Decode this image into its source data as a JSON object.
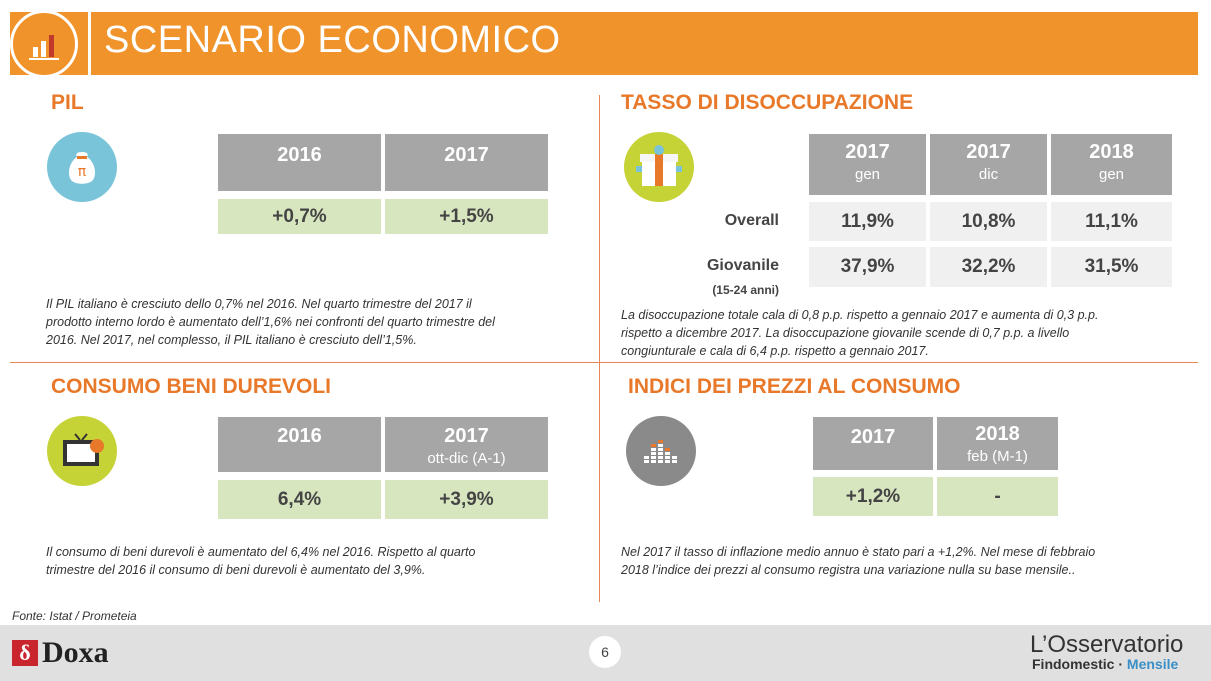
{
  "header": {
    "title": "SCENARIO ECONOMICO",
    "icon": "bar-chart-icon"
  },
  "pil": {
    "title": "PIL",
    "icon": "money-bag-icon",
    "headers": [
      "2016",
      "2017"
    ],
    "values": [
      "+0,7%",
      "+1,5%"
    ],
    "desc": [
      "Il PIL italiano è cresciuto dello 0,7% nel 2016. Nel quarto trimestre del 2017 il",
      "prodotto interno lordo è aumentato dell’1,6% nei confronti del quarto trimestre del",
      "2016. Nel 2017, nel complesso, il PIL italiano è cresciuto dell’1,5%."
    ]
  },
  "disoccupazione": {
    "title": "TASSO DI DISOCCUPAZIONE",
    "icon": "gift-box-icon",
    "headers": [
      {
        "year": "2017",
        "sub": "gen"
      },
      {
        "year": "2017",
        "sub": "dic"
      },
      {
        "year": "2018",
        "sub": "gen"
      }
    ],
    "rows": [
      {
        "label": "Overall",
        "sublabel": "",
        "values": [
          "11,9%",
          "10,8%",
          "11,1%"
        ]
      },
      {
        "label": "Giovanile",
        "sublabel": "(15-24 anni)",
        "values": [
          "37,9%",
          "32,2%",
          "31,5%"
        ]
      }
    ],
    "desc": [
      "La disoccupazione totale cala di 0,8 p.p. rispetto a gennaio 2017 e aumenta di 0,3 p.p.",
      "rispetto a dicembre 2017. La disoccupazione giovanile scende di 0,7 p.p. a livello",
      "congiunturale e cala di 6,4 p.p. rispetto a gennaio 2017."
    ]
  },
  "consumo": {
    "title": "CONSUMO BENI DUREVOLI",
    "icon": "television-icon",
    "headers": [
      {
        "year": "2016",
        "sub": ""
      },
      {
        "year": "2017",
        "sub": "ott-dic (A-1)"
      }
    ],
    "values": [
      "6,4%",
      "+3,9%"
    ],
    "desc": [
      "Il consumo di beni durevoli è aumentato del 6,4% nel 2016. Rispetto al quarto",
      "trimestre del 2016 il consumo di beni durevoli è aumentato del 3,9%."
    ]
  },
  "prezzi": {
    "title": "INDICI DEI PREZZI AL CONSUMO",
    "icon": "equalizer-bars-icon",
    "headers": [
      {
        "year": "2017",
        "sub": ""
      },
      {
        "year": "2018",
        "sub": "feb (M-1)"
      }
    ],
    "values": [
      "+1,2%",
      "-"
    ],
    "desc": [
      "Nel 2017 il tasso di inflazione medio annuo è stato pari a +1,2%. Nel mese di febbraio",
      "2018 l’indice dei prezzi al consumo registra una variazione nulla su base mensile.."
    ]
  },
  "footer": {
    "source": "Fonte: Istat / Prometeia",
    "page": "6",
    "doxa_mark": "δ",
    "doxa": "Doxa",
    "brand_line1": "L’Osservatorio",
    "brand_line2a": "Findomestic · ",
    "brand_line2b": "Mensile"
  }
}
